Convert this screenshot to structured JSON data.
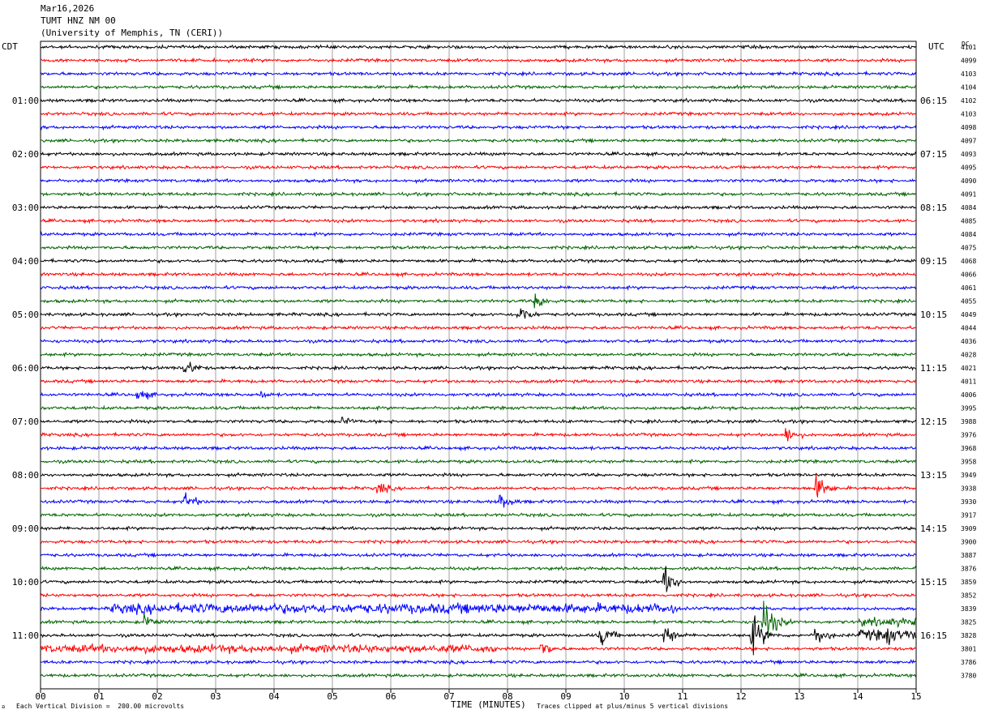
{
  "header": {
    "date": "Mar16,2026",
    "station": "TUMT HNZ NM 00",
    "institution": "(University of Memphis, TN (CERI))"
  },
  "left_tz": "CDT",
  "right_tz": "UTC",
  "dc_label": "DC",
  "footer": {
    "division": "Each Vertical Division =  200.00 microvolts",
    "clip_note": "Traces clipped at plus/minus 5 vertical divisions",
    "corner_mark": "อ"
  },
  "chart_data": {
    "type": "line",
    "xlabel": "TIME (MINUTES)",
    "xticks": [
      "00",
      "01",
      "02",
      "03",
      "04",
      "05",
      "06",
      "07",
      "08",
      "09",
      "10",
      "11",
      "12",
      "13",
      "14",
      "15"
    ],
    "xlim": [
      0,
      15
    ],
    "trace_colors": [
      "#000000",
      "#ff0000",
      "#0000ff",
      "#006400"
    ],
    "left_hour_labels": [
      "01:00",
      "02:00",
      "03:00",
      "04:00",
      "05:00",
      "06:00",
      "07:00",
      "08:00",
      "09:00",
      "10:00",
      "11:00"
    ],
    "right_hour_labels": [
      "06:15",
      "07:15",
      "08:15",
      "09:15",
      "10:15",
      "11:15",
      "12:15",
      "13:15",
      "14:15",
      "15:15",
      "16:15"
    ],
    "dc_offsets": [
      "4101",
      "4099",
      "4103",
      "4104",
      "4102",
      "4103",
      "4098",
      "4097",
      "4093",
      "4095",
      "4090",
      "4091",
      "4084",
      "4085",
      "4084",
      "4075",
      "4068",
      "4066",
      "4061",
      "4055",
      "4049",
      "4044",
      "4036",
      "4028",
      "4021",
      "4011",
      "4006",
      "3995",
      "3988",
      "3976",
      "3968",
      "3958",
      "3949",
      "3938",
      "3930",
      "3917",
      "3909",
      "3900",
      "3887",
      "3876",
      "3859",
      "3852",
      "3839",
      "3825",
      "3828",
      "3801",
      "3786",
      "3780"
    ],
    "events": [
      {
        "trace": 19,
        "minute": 8.5,
        "amp": 1.0
      },
      {
        "trace": 20,
        "minute": 8.2,
        "amp": 1.2
      },
      {
        "trace": 24,
        "minute": 2.5,
        "amp": 1.0
      },
      {
        "trace": 26,
        "minute": 1.7,
        "amp": 0.8
      },
      {
        "trace": 26,
        "minute": 3.8,
        "amp": 0.5
      },
      {
        "trace": 28,
        "minute": 5.2,
        "amp": 0.6
      },
      {
        "trace": 29,
        "minute": 12.8,
        "amp": 1.0
      },
      {
        "trace": 33,
        "minute": 5.8,
        "amp": 0.8
      },
      {
        "trace": 33,
        "minute": 13.3,
        "amp": 1.5
      },
      {
        "trace": 34,
        "minute": 2.5,
        "amp": 1.0
      },
      {
        "trace": 34,
        "minute": 7.9,
        "amp": 1.0
      },
      {
        "trace": 40,
        "minute": 10.7,
        "amp": 1.6
      },
      {
        "trace": 43,
        "minute": 1.8,
        "amp": 0.8
      },
      {
        "trace": 43,
        "minute": 12.4,
        "amp": 2.5
      },
      {
        "trace": 44,
        "minute": 9.6,
        "amp": 1.3
      },
      {
        "trace": 44,
        "minute": 10.7,
        "amp": 1.2
      },
      {
        "trace": 44,
        "minute": 12.2,
        "amp": 2.2
      },
      {
        "trace": 44,
        "minute": 13.3,
        "amp": 1.2
      },
      {
        "trace": 44,
        "minute": 14.5,
        "amp": 1.3
      },
      {
        "trace": 45,
        "minute": 8.6,
        "amp": 1.0
      }
    ],
    "bands": [
      {
        "trace": 42,
        "from": 1.2,
        "to": 10.9,
        "amp": 0.55
      },
      {
        "trace": 43,
        "from": 14.0,
        "to": 15.0,
        "amp": 0.45
      },
      {
        "trace": 44,
        "from": 14.0,
        "to": 15.0,
        "amp": 0.6
      },
      {
        "trace": 45,
        "from": 0.0,
        "to": 7.8,
        "amp": 0.45
      }
    ]
  }
}
